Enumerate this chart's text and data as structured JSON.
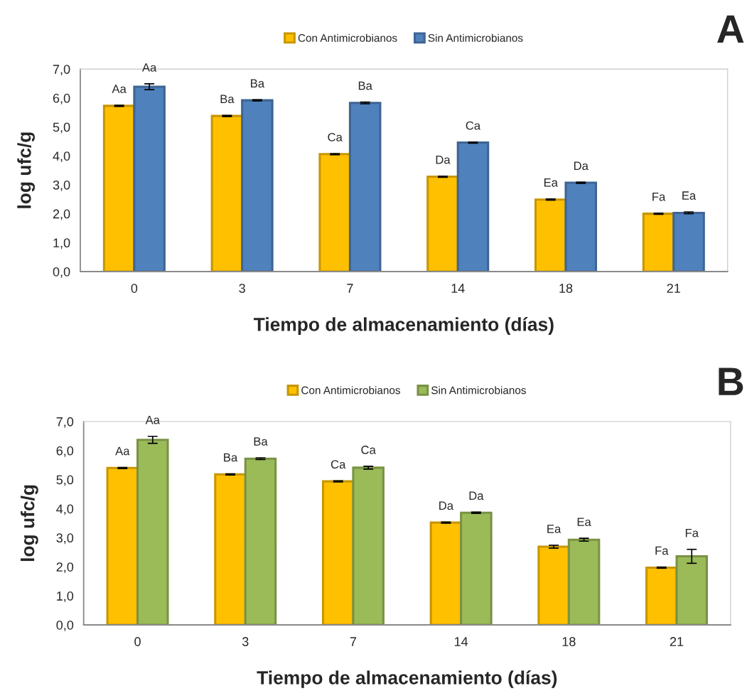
{
  "chart_data": [
    {
      "type": "bar",
      "categories": [
        "0",
        "3",
        "7",
        "14",
        "18",
        "21"
      ],
      "xlabel": "Tiempo de almacenamiento (días)",
      "ylabel": "log ufc/g",
      "ylim": [
        0,
        7
      ],
      "yticks": [
        {
          "value": 0,
          "label": "0,0"
        },
        {
          "value": 1,
          "label": "1,0"
        },
        {
          "value": 2,
          "label": "2,0"
        },
        {
          "value": 3,
          "label": "3,0"
        },
        {
          "value": 4,
          "label": "4,0"
        },
        {
          "value": 5,
          "label": "5,0"
        },
        {
          "value": 6,
          "label": "6,0"
        },
        {
          "value": 7,
          "label": "7,0"
        }
      ],
      "legend": "top",
      "annotations": [
        "A"
      ],
      "series": [
        {
          "name": "Con Antimicrobianos",
          "color": "#ffc000",
          "values": [
            5.73,
            5.38,
            4.06,
            3.28,
            2.49,
            2.0
          ],
          "errors": [
            0.02,
            0.02,
            0.02,
            0.02,
            0.02,
            0.02
          ],
          "value_labels": [
            "Aa",
            "Ba",
            "Ca",
            "Da",
            "Ea",
            "Fa"
          ]
        },
        {
          "name": "Sin Antimicrobianos",
          "color": "#4f81bd",
          "values": [
            6.39,
            5.92,
            5.83,
            4.46,
            3.07,
            2.03
          ],
          "errors": [
            0.1,
            0.02,
            0.03,
            0.02,
            0.02,
            0.03
          ],
          "value_labels": [
            "Aa",
            "Ba",
            "Ba",
            "Ca",
            "Da",
            "Ea"
          ]
        }
      ]
    },
    {
      "type": "bar",
      "categories": [
        "0",
        "3",
        "7",
        "14",
        "18",
        "21"
      ],
      "xlabel": "Tiempo de almacenamiento (días)",
      "ylabel": "log ufc/g",
      "ylim": [
        0,
        7
      ],
      "yticks": [
        {
          "value": 0,
          "label": "0,0"
        },
        {
          "value": 1,
          "label": "1,0"
        },
        {
          "value": 2,
          "label": "2,0"
        },
        {
          "value": 3,
          "label": "3,0"
        },
        {
          "value": 4,
          "label": "4,0"
        },
        {
          "value": 5,
          "label": "5,0"
        },
        {
          "value": 6,
          "label": "6,0"
        },
        {
          "value": 7,
          "label": "7,0"
        }
      ],
      "legend": "top",
      "annotations": [
        "B"
      ],
      "series": [
        {
          "name": "Con Antimicrobianos",
          "color": "#ffc000",
          "values": [
            5.4,
            5.18,
            4.94,
            3.52,
            2.69,
            1.97
          ],
          "errors": [
            0.02,
            0.02,
            0.02,
            0.02,
            0.05,
            0.02
          ],
          "value_labels": [
            "Aa",
            "Ba",
            "Ca",
            "Da",
            "Ea",
            "Fa"
          ]
        },
        {
          "name": "Sin Antimicrobianos",
          "color": "#9bbb59",
          "values": [
            6.37,
            5.72,
            5.41,
            3.86,
            2.93,
            2.36
          ],
          "errors": [
            0.12,
            0.03,
            0.05,
            0.02,
            0.05,
            0.24
          ],
          "value_labels": [
            "Aa",
            "Ba",
            "Ca",
            "Da",
            "Ea",
            "Fa"
          ]
        }
      ]
    }
  ]
}
